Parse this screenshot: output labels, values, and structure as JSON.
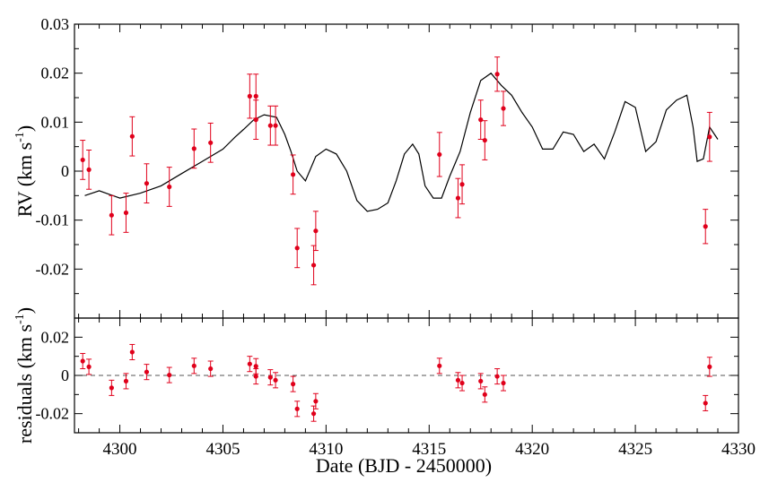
{
  "figure": {
    "xlabel": "Date (BJD - 2450000)",
    "x_ticks": [
      "4300",
      "4305",
      "4310",
      "4315",
      "4320",
      "4325",
      "4330"
    ],
    "top_ylabel": "RV (km s",
    "top_ylabel_sup": "-1",
    "top_ylabel_close": ")",
    "top_y_ticks": [
      "0.03",
      "0.02",
      "0.01",
      "0",
      "-0.01",
      "-0.02"
    ],
    "bottom_ylabel": "residuals (km s",
    "bottom_ylabel_sup": "-1",
    "bottom_ylabel_close": ")",
    "bottom_y_ticks": [
      "0.02",
      "0",
      "-0.02"
    ]
  },
  "colors": {
    "points": "#e0001b",
    "errorbar": "#e0001b",
    "model": "#000000",
    "zero_line": "#555555"
  },
  "chart_data": [
    {
      "type": "scatter",
      "panel": "top",
      "ylabel": "RV (km s-1)",
      "xlabel": "",
      "xlim": [
        4297.8,
        4330
      ],
      "ylim": [
        -0.03,
        0.03
      ],
      "grid": false,
      "points": [
        {
          "x": 4298.2,
          "y": 0.0023,
          "err": 0.004
        },
        {
          "x": 4298.5,
          "y": 0.0003,
          "err": 0.004
        },
        {
          "x": 4299.6,
          "y": -0.009,
          "err": 0.004
        },
        {
          "x": 4300.3,
          "y": -0.0085,
          "err": 0.004
        },
        {
          "x": 4300.6,
          "y": 0.0071,
          "err": 0.004
        },
        {
          "x": 4301.3,
          "y": -0.0025,
          "err": 0.004
        },
        {
          "x": 4302.4,
          "y": -0.0032,
          "err": 0.004
        },
        {
          "x": 4303.6,
          "y": 0.0046,
          "err": 0.004
        },
        {
          "x": 4304.4,
          "y": 0.0058,
          "err": 0.004
        },
        {
          "x": 4306.3,
          "y": 0.0153,
          "err": 0.0045
        },
        {
          "x": 4306.6,
          "y": 0.0153,
          "err": 0.0045
        },
        {
          "x": 4306.6,
          "y": 0.0105,
          "err": 0.004
        },
        {
          "x": 4307.3,
          "y": 0.0093,
          "err": 0.004
        },
        {
          "x": 4307.55,
          "y": 0.0093,
          "err": 0.004
        },
        {
          "x": 4308.4,
          "y": -0.0007,
          "err": 0.004
        },
        {
          "x": 4308.6,
          "y": -0.0157,
          "err": 0.004
        },
        {
          "x": 4309.4,
          "y": -0.0192,
          "err": 0.004
        },
        {
          "x": 4309.5,
          "y": -0.0122,
          "err": 0.004
        },
        {
          "x": 4315.5,
          "y": 0.0034,
          "err": 0.0045
        },
        {
          "x": 4316.4,
          "y": -0.0055,
          "err": 0.004
        },
        {
          "x": 4316.6,
          "y": -0.0027,
          "err": 0.004
        },
        {
          "x": 4317.5,
          "y": 0.0105,
          "err": 0.004
        },
        {
          "x": 4317.7,
          "y": 0.0063,
          "err": 0.004
        },
        {
          "x": 4318.3,
          "y": 0.0198,
          "err": 0.0035
        },
        {
          "x": 4318.6,
          "y": 0.0128,
          "err": 0.0035
        },
        {
          "x": 4328.4,
          "y": -0.0113,
          "err": 0.0035
        },
        {
          "x": 4328.6,
          "y": 0.007,
          "err": 0.005
        }
      ],
      "model": {
        "name": "",
        "x": [
          4298.3,
          4299.0,
          4300.0,
          4301.0,
          4302.0,
          4303.0,
          4304.0,
          4305.0,
          4305.6,
          4306.0,
          4306.5,
          4307.0,
          4307.6,
          4308.0,
          4308.3,
          4308.6,
          4309.0,
          4309.5,
          4310.0,
          4310.5,
          4311.0,
          4311.5,
          4312.0,
          4312.5,
          4313.0,
          4313.4,
          4313.8,
          4314.2,
          4314.5,
          4314.8,
          4315.2,
          4315.6,
          4316.0,
          4316.5,
          4317.0,
          4317.5,
          4318.0,
          4318.5,
          4319.0,
          4319.5,
          4320.0,
          4320.5,
          4321.0,
          4321.5,
          4322.0,
          4322.5,
          4323.0,
          4323.5,
          4324.0,
          4324.5,
          4325.0,
          4325.5,
          4326.0,
          4326.5,
          4327.0,
          4327.5,
          4327.8,
          4328.0,
          4328.3,
          4328.6,
          4329.0
        ],
        "y": [
          -0.005,
          -0.004,
          -0.0055,
          -0.0045,
          -0.003,
          -0.0005,
          0.002,
          0.0045,
          0.007,
          0.0085,
          0.0105,
          0.0115,
          0.011,
          0.0075,
          0.004,
          0.0,
          -0.002,
          0.003,
          0.0045,
          0.0035,
          0.0,
          -0.006,
          -0.0082,
          -0.0078,
          -0.0065,
          -0.002,
          0.0035,
          0.0055,
          0.0035,
          -0.003,
          -0.0055,
          -0.0055,
          -0.001,
          0.004,
          0.012,
          0.0185,
          0.02,
          0.0175,
          0.0155,
          0.012,
          0.009,
          0.0045,
          0.0045,
          0.008,
          0.0075,
          0.004,
          0.0055,
          0.0025,
          0.008,
          0.0142,
          0.013,
          0.004,
          0.006,
          0.0125,
          0.0145,
          0.0155,
          0.009,
          0.002,
          0.0025,
          0.009,
          0.0065
        ]
      }
    },
    {
      "type": "scatter",
      "panel": "bottom",
      "ylabel": "residuals (km s-1)",
      "xlabel": "Date (BJD - 2450000)",
      "xlim": [
        4297.8,
        4330
      ],
      "ylim": [
        -0.03,
        0.03
      ],
      "grid": false,
      "zero_line": true,
      "points": [
        {
          "x": 4298.2,
          "y": 0.0075,
          "err": 0.004
        },
        {
          "x": 4298.5,
          "y": 0.0045,
          "err": 0.004
        },
        {
          "x": 4299.6,
          "y": -0.0065,
          "err": 0.004
        },
        {
          "x": 4300.3,
          "y": -0.003,
          "err": 0.004
        },
        {
          "x": 4300.6,
          "y": 0.0122,
          "err": 0.004
        },
        {
          "x": 4301.3,
          "y": 0.0018,
          "err": 0.004
        },
        {
          "x": 4302.4,
          "y": 0.0002,
          "err": 0.004
        },
        {
          "x": 4303.6,
          "y": 0.005,
          "err": 0.004
        },
        {
          "x": 4304.4,
          "y": 0.0035,
          "err": 0.004
        },
        {
          "x": 4306.3,
          "y": 0.006,
          "err": 0.004
        },
        {
          "x": 4306.6,
          "y": 0.0048,
          "err": 0.004
        },
        {
          "x": 4306.6,
          "y": -0.0005,
          "err": 0.004
        },
        {
          "x": 4307.3,
          "y": -0.001,
          "err": 0.004
        },
        {
          "x": 4307.55,
          "y": -0.0025,
          "err": 0.004
        },
        {
          "x": 4308.4,
          "y": -0.0045,
          "err": 0.004
        },
        {
          "x": 4308.6,
          "y": -0.0175,
          "err": 0.004
        },
        {
          "x": 4309.4,
          "y": -0.02,
          "err": 0.004
        },
        {
          "x": 4309.5,
          "y": -0.0135,
          "err": 0.004
        },
        {
          "x": 4315.5,
          "y": 0.005,
          "err": 0.004
        },
        {
          "x": 4316.4,
          "y": -0.0025,
          "err": 0.004
        },
        {
          "x": 4316.6,
          "y": -0.004,
          "err": 0.004
        },
        {
          "x": 4317.5,
          "y": -0.003,
          "err": 0.004
        },
        {
          "x": 4317.7,
          "y": -0.01,
          "err": 0.004
        },
        {
          "x": 4318.3,
          "y": -0.0005,
          "err": 0.004
        },
        {
          "x": 4318.6,
          "y": -0.004,
          "err": 0.004
        },
        {
          "x": 4328.4,
          "y": -0.0145,
          "err": 0.004
        },
        {
          "x": 4328.6,
          "y": 0.0045,
          "err": 0.005
        }
      ]
    }
  ]
}
